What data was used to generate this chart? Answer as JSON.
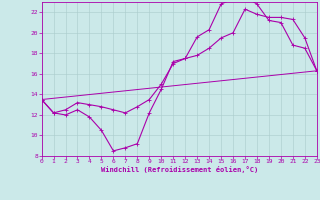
{
  "xlabel": "Windchill (Refroidissement éolien,°C)",
  "bg_color": "#cbe9e9",
  "line_color": "#aa00aa",
  "grid_color": "#aacccc",
  "x_min": 0,
  "x_max": 23,
  "y_min": 8,
  "y_max": 23,
  "x_ticks": [
    0,
    1,
    2,
    3,
    4,
    5,
    6,
    7,
    8,
    9,
    10,
    11,
    12,
    13,
    14,
    15,
    16,
    17,
    18,
    19,
    20,
    21,
    22,
    23
  ],
  "y_ticks": [
    8,
    10,
    12,
    14,
    16,
    18,
    20,
    22
  ],
  "curve1_x": [
    0,
    1,
    2,
    3,
    4,
    5,
    6,
    7,
    8,
    9,
    10,
    11,
    12,
    13,
    14,
    15,
    16,
    17,
    18,
    19,
    20,
    21,
    22,
    23
  ],
  "curve1_y": [
    13.5,
    12.2,
    12.0,
    12.5,
    11.8,
    10.5,
    8.5,
    8.8,
    9.2,
    12.2,
    14.5,
    17.2,
    17.5,
    19.6,
    20.3,
    22.8,
    23.3,
    23.5,
    22.8,
    21.2,
    21.0,
    18.8,
    18.5,
    16.3
  ],
  "curve2_x": [
    0,
    1,
    2,
    3,
    4,
    5,
    6,
    7,
    8,
    9,
    10,
    11,
    12,
    13,
    14,
    15,
    16,
    17,
    18,
    19,
    20,
    21,
    22,
    23
  ],
  "curve2_y": [
    13.5,
    12.2,
    12.5,
    13.2,
    13.0,
    12.8,
    12.5,
    12.2,
    12.8,
    13.5,
    15.0,
    17.0,
    17.5,
    17.8,
    18.5,
    19.5,
    20.0,
    22.3,
    21.8,
    21.5,
    21.5,
    21.3,
    19.5,
    16.3
  ],
  "curve3_x": [
    0,
    23
  ],
  "curve3_y": [
    13.5,
    16.3
  ]
}
